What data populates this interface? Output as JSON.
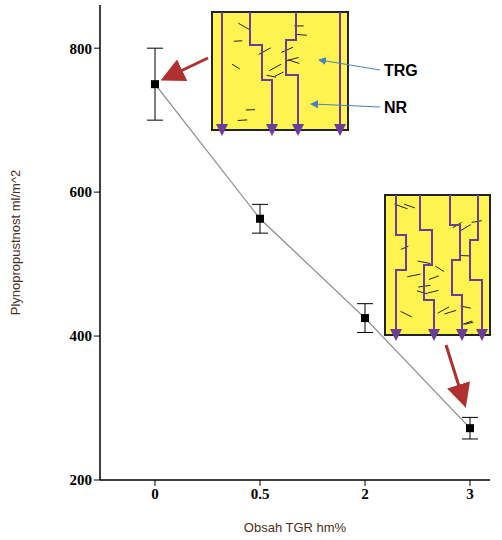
{
  "chart_data": {
    "type": "line",
    "x_label": "Obsah TGR hm%",
    "y_label": "Plynopropustnost ml/m^2",
    "categories": [
      "0",
      "0.5",
      "2",
      "3"
    ],
    "values": [
      750,
      563,
      425,
      272
    ],
    "errors": [
      50,
      20,
      20,
      15
    ],
    "color": "#000000",
    "marker": "square",
    "ylim": [
      200,
      860
    ],
    "yticks": [
      200,
      400,
      600,
      800
    ],
    "grid": false,
    "annotations": [
      "TRG",
      "NR"
    ]
  }
}
